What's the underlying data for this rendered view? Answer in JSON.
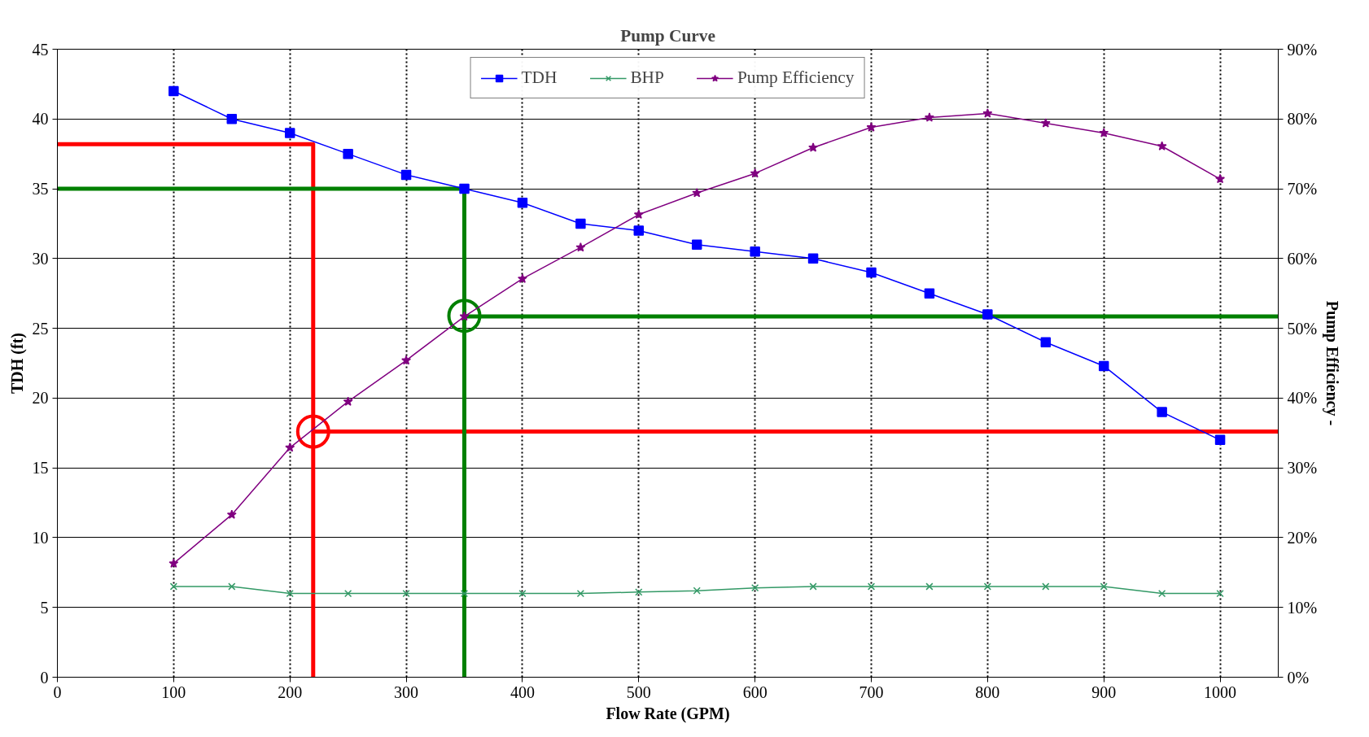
{
  "chart_data": {
    "type": "line",
    "title": "Pump Curve",
    "xlabel": "Flow Rate (GPM)",
    "ylabel": "TDH (ft)",
    "y2label": "Pump Efficiency -",
    "x": [
      100,
      150,
      200,
      250,
      300,
      350,
      400,
      450,
      500,
      550,
      600,
      650,
      700,
      750,
      800,
      850,
      900,
      950,
      1000
    ],
    "series": [
      {
        "name": "TDH",
        "color": "#0000ff",
        "marker": "square",
        "values": [
          42,
          40,
          39,
          37.5,
          36,
          35,
          34,
          32.5,
          32,
          31,
          30.5,
          30,
          29,
          27.5,
          26,
          24,
          22.3,
          19,
          17
        ]
      },
      {
        "name": "BHP",
        "color": "#339966",
        "marker": "cross",
        "values": [
          6.5,
          6.5,
          6,
          6,
          6,
          6,
          6,
          6,
          6.1,
          6.2,
          6.4,
          6.5,
          6.5,
          6.5,
          6.5,
          6.5,
          6.5,
          6,
          6
        ]
      },
      {
        "name": "Pump Efficiency",
        "color": "#800080",
        "marker": "star",
        "axis": "y2",
        "values": [
          16.3,
          23.3,
          32.9,
          39.5,
          45.4,
          51.7,
          57.1,
          61.6,
          66.3,
          69.4,
          72.2,
          75.9,
          78.8,
          80.2,
          80.8,
          79.4,
          78.0,
          76.1,
          71.4
        ]
      },
      {
        "type": "line",
        "color": "#ff0000",
        "marker": "none",
        "x": [
          0,
          220,
          220
        ],
        "values": [
          38.2,
          38.2,
          0
        ]
      },
      {
        "type": "line",
        "color": "#ff0000",
        "marker": "none",
        "axis": "y2",
        "x": [
          220,
          1050
        ],
        "values": [
          35.2,
          35.2
        ]
      },
      {
        "type": "scatter",
        "color": "#ff0000",
        "marker": "circle",
        "x": [
          220
        ],
        "values": [
          17.6
        ]
      },
      {
        "type": "line",
        "color": "#008000",
        "marker": "none",
        "x": [
          0,
          350,
          350
        ],
        "values": [
          35,
          35,
          0
        ]
      },
      {
        "type": "line",
        "color": "#008000",
        "marker": "none",
        "axis": "y2",
        "x": [
          350,
          1050
        ],
        "values": [
          51.7,
          51.7
        ]
      },
      {
        "type": "scatter",
        "color": "#008000",
        "marker": "circle",
        "x": [
          350
        ],
        "values": [
          25.9
        ]
      }
    ],
    "xlim": [
      0,
      1050
    ],
    "xticks": [
      0,
      100,
      200,
      300,
      400,
      500,
      600,
      700,
      800,
      900,
      1000
    ],
    "ylim": [
      0,
      45
    ],
    "yticks": [
      0,
      5,
      10,
      15,
      20,
      25,
      30,
      35,
      40,
      45
    ],
    "y2lim": [
      0,
      90
    ],
    "y2ticks": [
      {
        "value": 0,
        "label": "0%"
      },
      {
        "value": 10,
        "label": "10%"
      },
      {
        "value": 20,
        "label": "20%"
      },
      {
        "value": 30,
        "label": "30%"
      },
      {
        "value": 40,
        "label": "40%"
      },
      {
        "value": 50,
        "label": "50%"
      },
      {
        "value": 60,
        "label": "60%"
      },
      {
        "value": 70,
        "label": "70%"
      },
      {
        "value": 80,
        "label": "80%"
      },
      {
        "value": 90,
        "label": "90%"
      }
    ],
    "grid": true,
    "legend": "top",
    "line_style": "solid"
  }
}
